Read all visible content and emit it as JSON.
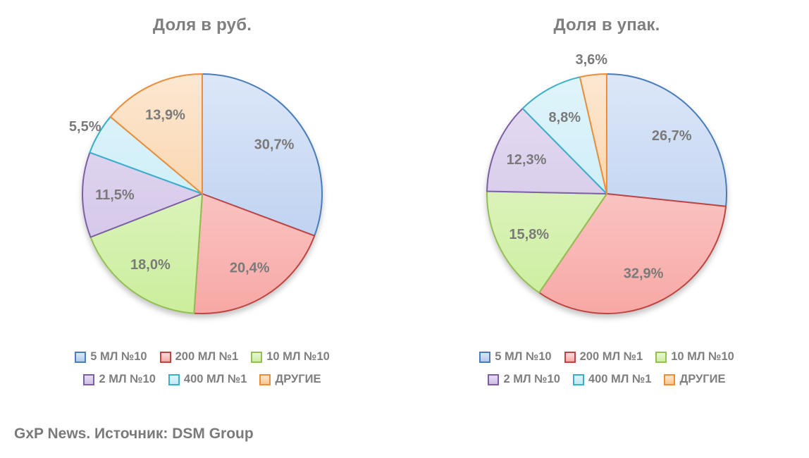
{
  "footer": {
    "source_note": "GxP News. Источник: DSM Group"
  },
  "colors": {
    "text": "#7F7F7F",
    "label_text": "#7A7A7A",
    "series": [
      {
        "name": "5 МЛ №10",
        "border": "#4A7EBB",
        "fill_light": "#DCE7F8",
        "fill_dark": "#B3C9EE"
      },
      {
        "name": "200 МЛ №1",
        "border": "#BF4543",
        "fill_light": "#FBDEDD",
        "fill_dark": "#F8A8A5"
      },
      {
        "name": "10 МЛ №10",
        "border": "#93C052",
        "fill_light": "#EAF7D7",
        "fill_dark": "#CBEE9C"
      },
      {
        "name": "2 МЛ №10",
        "border": "#7C5FA6",
        "fill_light": "#E6DEF2",
        "fill_dark": "#CEBEE6"
      },
      {
        "name": "400 МЛ №1",
        "border": "#3AAFCC",
        "fill_light": "#E0F4FB",
        "fill_dark": "#C0EAF6"
      },
      {
        "name": "ДРУГИЕ",
        "border": "#ED8E3B",
        "fill_light": "#FCE8D2",
        "fill_dark": "#F9C68F"
      }
    ]
  },
  "chart_data": [
    {
      "type": "pie",
      "title": "Доля в руб.",
      "categories": [
        "5 МЛ №10",
        "200 МЛ №1",
        "10 МЛ №10",
        "2 МЛ №10",
        "400 МЛ №1",
        "ДРУГИЕ"
      ],
      "values": [
        30.7,
        20.4,
        18.0,
        11.5,
        5.5,
        13.9
      ],
      "labels": [
        "30,7%",
        "20,4%",
        "18,0%",
        "11,5%",
        "5,5%",
        "13,9%"
      ],
      "start_angle_deg": 0,
      "direction": "clockwise",
      "legend_position": "bottom",
      "legend_items_per_row": 3
    },
    {
      "type": "pie",
      "title": "Доля в упак.",
      "categories": [
        "5 МЛ №10",
        "200 МЛ №1",
        "10 МЛ №10",
        "2 МЛ №10",
        "400 МЛ №1",
        "ДРУГИЕ"
      ],
      "values": [
        26.7,
        32.9,
        15.8,
        12.3,
        8.8,
        3.6
      ],
      "labels": [
        "26,7%",
        "32,9%",
        "15,8%",
        "12,3%",
        "8,8%",
        "3,6%"
      ],
      "start_angle_deg": 0,
      "direction": "clockwise",
      "legend_position": "bottom",
      "legend_items_per_row": 3
    }
  ]
}
